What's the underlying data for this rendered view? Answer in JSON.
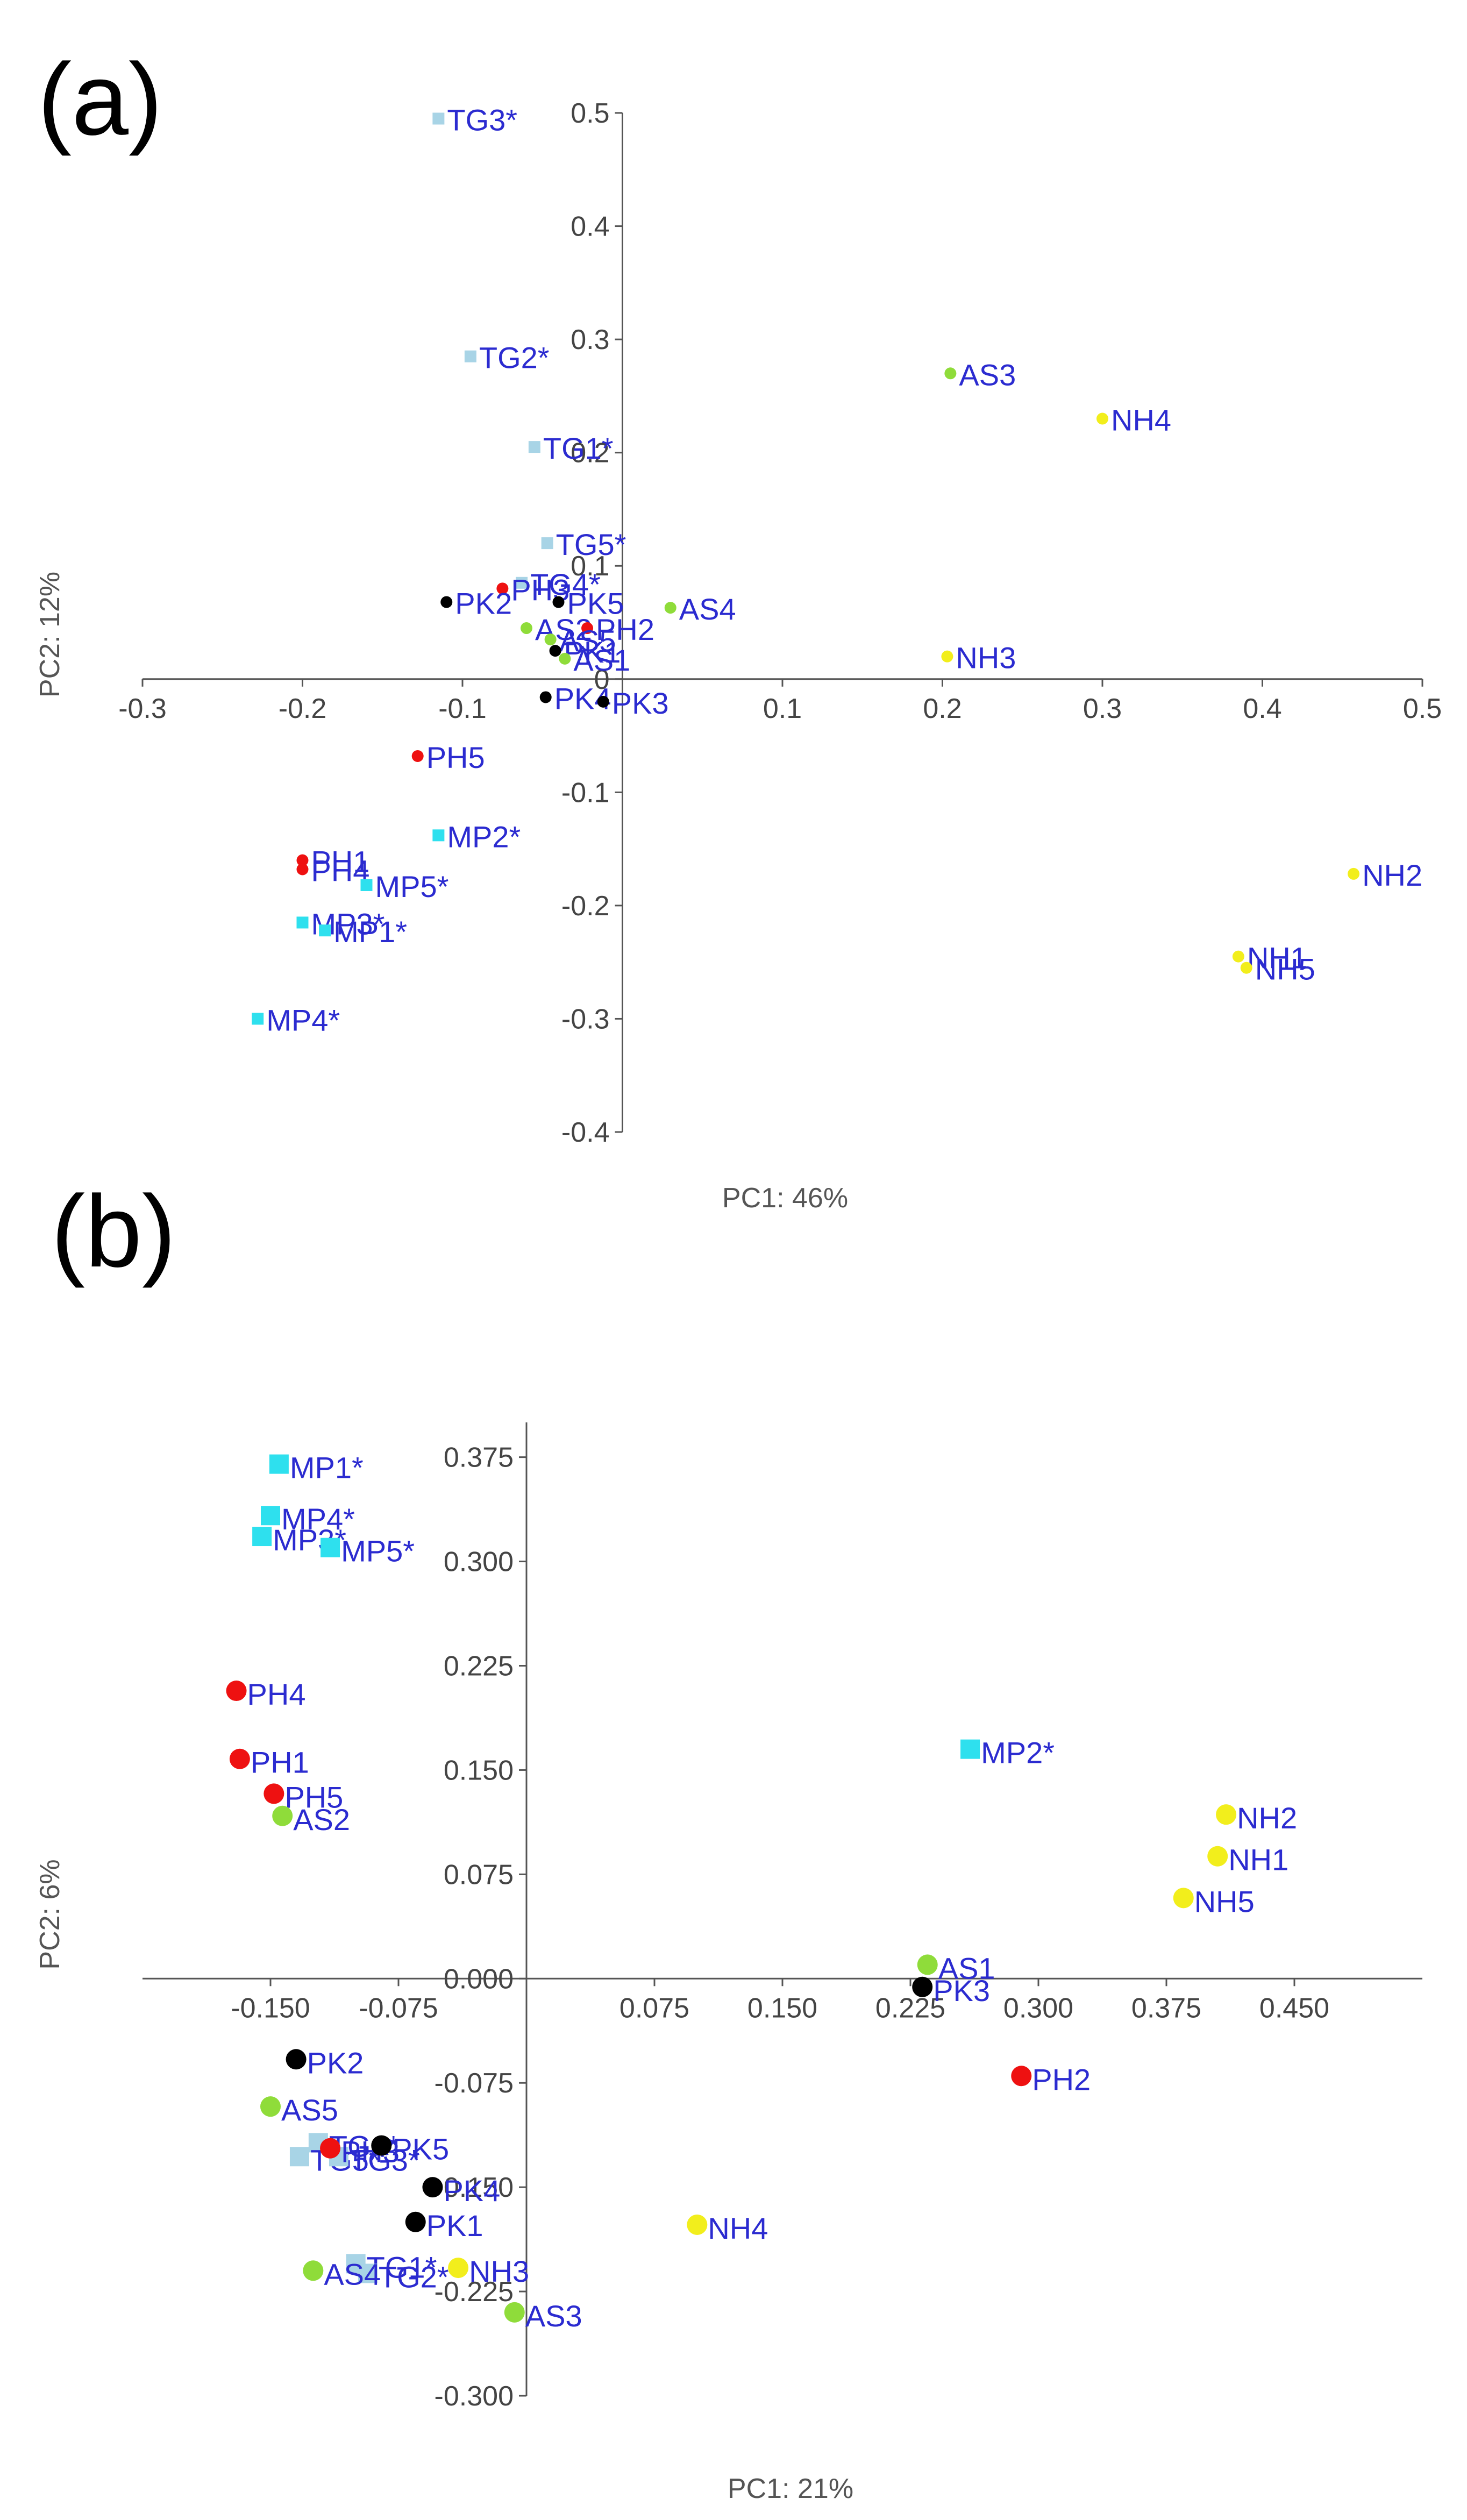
{
  "colors": {
    "TG": "#a8d4e6",
    "MP": "#2ee0ee",
    "PH": "#ee1111",
    "PK": "#000000",
    "AS": "#8fdc3a",
    "NH": "#f2ee1c",
    "label": "#2b2bd0",
    "axis": "#555555"
  },
  "chart_data": [
    {
      "panel_label": "(a)",
      "type": "scatter",
      "xlabel": "PC1: 46%",
      "ylabel": "PC2: 12%",
      "xlim": [
        -0.3,
        0.5
      ],
      "ylim": [
        -0.4,
        0.5
      ],
      "xticks": [
        "-0.3",
        "-0.2",
        "-0.1",
        "0.1",
        "0.2",
        "0.3",
        "0.4",
        "0.5"
      ],
      "xtick_values": [
        -0.3,
        -0.2,
        -0.1,
        0.1,
        0.2,
        0.3,
        0.4,
        0.5
      ],
      "yticks": [
        "0.5",
        "0.4",
        "0.3",
        "0.2",
        "0.1",
        "0",
        "-0.1",
        "-0.2",
        "-0.3",
        "-0.4"
      ],
      "ytick_values": [
        0.5,
        0.4,
        0.3,
        0.2,
        0.1,
        0.0,
        -0.1,
        -0.2,
        -0.3,
        -0.4
      ],
      "points": [
        {
          "label": "TG3*",
          "group": "TG",
          "x": -0.115,
          "y": 0.495
        },
        {
          "label": "TG2*",
          "group": "TG",
          "x": -0.095,
          "y": 0.285
        },
        {
          "label": "TG1*",
          "group": "TG",
          "x": -0.055,
          "y": 0.205
        },
        {
          "label": "TG5*",
          "group": "TG",
          "x": -0.047,
          "y": 0.12
        },
        {
          "label": "TG4*",
          "group": "TG",
          "x": -0.063,
          "y": 0.085
        },
        {
          "label": "PH3",
          "group": "PH",
          "x": -0.075,
          "y": 0.08
        },
        {
          "label": "PK2",
          "group": "PK",
          "x": -0.11,
          "y": 0.068
        },
        {
          "label": "PK5",
          "group": "PK",
          "x": -0.04,
          "y": 0.068
        },
        {
          "label": "AS4",
          "group": "AS",
          "x": 0.03,
          "y": 0.063
        },
        {
          "label": "AS2",
          "group": "AS",
          "x": -0.06,
          "y": 0.045
        },
        {
          "label": "PH2",
          "group": "PH",
          "x": -0.022,
          "y": 0.045
        },
        {
          "label": "AS5",
          "group": "AS",
          "x": -0.045,
          "y": 0.035
        },
        {
          "label": "PK1",
          "group": "PK",
          "x": -0.042,
          "y": 0.025
        },
        {
          "label": "AS1",
          "group": "AS",
          "x": -0.036,
          "y": 0.018
        },
        {
          "label": "PK4",
          "group": "PK",
          "x": -0.048,
          "y": -0.016
        },
        {
          "label": "PK3",
          "group": "PK",
          "x": -0.012,
          "y": -0.02
        },
        {
          "label": "AS3",
          "group": "AS",
          "x": 0.205,
          "y": 0.27
        },
        {
          "label": "NH4",
          "group": "NH",
          "x": 0.3,
          "y": 0.23
        },
        {
          "label": "NH3",
          "group": "NH",
          "x": 0.203,
          "y": 0.02
        },
        {
          "label": "PH5",
          "group": "PH",
          "x": -0.128,
          "y": -0.068
        },
        {
          "label": "MP2*",
          "group": "MP",
          "x": -0.115,
          "y": -0.138
        },
        {
          "label": "PH1",
          "group": "PH",
          "x": -0.2,
          "y": -0.16
        },
        {
          "label": "PH4",
          "group": "PH",
          "x": -0.2,
          "y": -0.168
        },
        {
          "label": "MP5*",
          "group": "MP",
          "x": -0.16,
          "y": -0.182
        },
        {
          "label": "MP3*",
          "group": "MP",
          "x": -0.2,
          "y": -0.215
        },
        {
          "label": "MP1*",
          "group": "MP",
          "x": -0.186,
          "y": -0.222
        },
        {
          "label": "MP4*",
          "group": "MP",
          "x": -0.228,
          "y": -0.3
        },
        {
          "label": "NH2",
          "group": "NH",
          "x": 0.457,
          "y": -0.172
        },
        {
          "label": "NH1",
          "group": "NH",
          "x": 0.385,
          "y": -0.245
        },
        {
          "label": "NH5",
          "group": "NH",
          "x": 0.39,
          "y": -0.255
        }
      ]
    },
    {
      "panel_label": "(b)",
      "type": "scatter",
      "xlabel": "PC1: 21%",
      "ylabel": "PC2: 6%",
      "xlim": [
        -0.225,
        0.525
      ],
      "ylim": [
        -0.3,
        0.4
      ],
      "xticks": [
        "-0.150",
        "-0.075",
        "0.075",
        "0.150",
        "0.225",
        "0.300",
        "0.375",
        "0.450"
      ],
      "xtick_values": [
        -0.15,
        -0.075,
        0.075,
        0.15,
        0.225,
        0.3,
        0.375,
        0.45
      ],
      "yticks": [
        "0.375",
        "0.300",
        "0.225",
        "0.150",
        "0.075",
        "0.000",
        "-0.075",
        "-0.150",
        "-0.225",
        "-0.300"
      ],
      "ytick_values": [
        0.375,
        0.3,
        0.225,
        0.15,
        0.075,
        0.0,
        -0.075,
        -0.15,
        -0.225,
        -0.3
      ],
      "points": [
        {
          "label": "MP1*",
          "group": "MP",
          "x": -0.145,
          "y": 0.37
        },
        {
          "label": "MP4*",
          "group": "MP",
          "x": -0.15,
          "y": 0.333
        },
        {
          "label": "MP3*",
          "group": "MP",
          "x": -0.155,
          "y": 0.318
        },
        {
          "label": "MP5*",
          "group": "MP",
          "x": -0.115,
          "y": 0.31
        },
        {
          "label": "PH4",
          "group": "PH",
          "x": -0.17,
          "y": 0.207
        },
        {
          "label": "PH1",
          "group": "PH",
          "x": -0.168,
          "y": 0.158
        },
        {
          "label": "PH5",
          "group": "PH",
          "x": -0.148,
          "y": 0.133
        },
        {
          "label": "AS2",
          "group": "AS",
          "x": -0.143,
          "y": 0.117
        },
        {
          "label": "MP2*",
          "group": "MP",
          "x": 0.26,
          "y": 0.165
        },
        {
          "label": "NH2",
          "group": "NH",
          "x": 0.41,
          "y": 0.118
        },
        {
          "label": "NH1",
          "group": "NH",
          "x": 0.405,
          "y": 0.088
        },
        {
          "label": "NH5",
          "group": "NH",
          "x": 0.385,
          "y": 0.058
        },
        {
          "label": "AS1",
          "group": "AS",
          "x": 0.235,
          "y": 0.01
        },
        {
          "label": "PK3",
          "group": "PK",
          "x": 0.232,
          "y": -0.006
        },
        {
          "label": "PH2",
          "group": "PH",
          "x": 0.29,
          "y": -0.07
        },
        {
          "label": "PK2",
          "group": "PK",
          "x": -0.135,
          "y": -0.058
        },
        {
          "label": "AS5",
          "group": "AS",
          "x": -0.15,
          "y": -0.092
        },
        {
          "label": "TG4*",
          "group": "TG",
          "x": -0.122,
          "y": -0.118
        },
        {
          "label": "TG5*",
          "group": "TG",
          "x": -0.133,
          "y": -0.128
        },
        {
          "label": "TG3*",
          "group": "TG",
          "x": -0.11,
          "y": -0.128
        },
        {
          "label": "PH3",
          "group": "PH",
          "x": -0.115,
          "y": -0.122
        },
        {
          "label": "PK5",
          "group": "PK",
          "x": -0.085,
          "y": -0.12
        },
        {
          "label": "PK4",
          "group": "PK",
          "x": -0.055,
          "y": -0.15
        },
        {
          "label": "PK1",
          "group": "PK",
          "x": -0.065,
          "y": -0.175
        },
        {
          "label": "NH4",
          "group": "NH",
          "x": 0.1,
          "y": -0.177
        },
        {
          "label": "TG1*",
          "group": "TG",
          "x": -0.1,
          "y": -0.205
        },
        {
          "label": "TG2*",
          "group": "TG",
          "x": -0.093,
          "y": -0.212
        },
        {
          "label": "AS4",
          "group": "AS",
          "x": -0.125,
          "y": -0.21
        },
        {
          "label": "NH3",
          "group": "NH",
          "x": -0.04,
          "y": -0.208
        },
        {
          "label": "AS3",
          "group": "AS",
          "x": -0.007,
          "y": -0.24
        }
      ]
    }
  ]
}
